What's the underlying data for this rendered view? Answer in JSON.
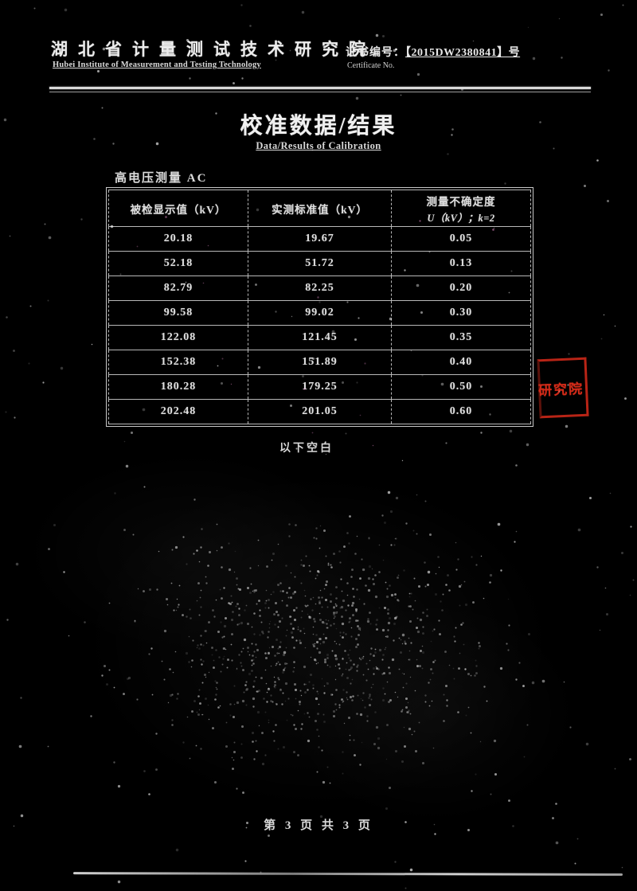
{
  "document": {
    "header": {
      "org_cn": "湖北省计量测试技术研究院",
      "org_en": "Hubei Institute of Measurement and Testing Technology",
      "cert_no_label_cn": "证书编号：",
      "cert_no_value": "【2015DW2380841】号",
      "cert_no_label_en": "Certificate No."
    },
    "title_cn": "校准数据/结果",
    "title_en": "Data/Results of Calibration",
    "section_label": "高电压测量 AC",
    "table": {
      "col_headers": [
        {
          "line1": "被检显示值（kV）",
          "line2": ""
        },
        {
          "line1": "实测标准值（kV）",
          "line2": ""
        },
        {
          "line1": "测量不确定度",
          "line2": "U（kV）；k=2"
        }
      ],
      "rows": [
        [
          "20.18",
          "19.67",
          "0.05"
        ],
        [
          "52.18",
          "51.72",
          "0.13"
        ],
        [
          "82.79",
          "82.25",
          "0.20"
        ],
        [
          "99.58",
          "99.02",
          "0.30"
        ],
        [
          "122.08",
          "121.45",
          "0.35"
        ],
        [
          "152.38",
          "151.89",
          "0.40"
        ],
        [
          "180.28",
          "179.25",
          "0.50"
        ],
        [
          "202.48",
          "201.05",
          "0.60"
        ]
      ]
    },
    "end_note": "以下空白",
    "stamp_text": "研究院",
    "footer_page": "第 3 页 共 3 页",
    "colors": {
      "stamp_red": "#d42a18",
      "ink": "#e4e4e4",
      "background": "#000000"
    }
  }
}
